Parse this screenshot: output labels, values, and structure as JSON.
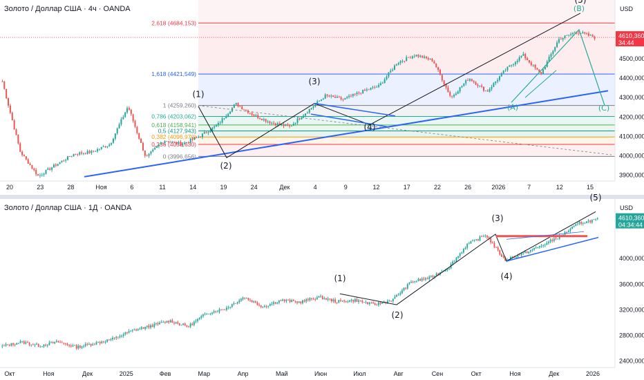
{
  "colors": {
    "up": "#26a69a",
    "down": "#ef5350",
    "trend": "#2962ff",
    "wave": "#131722",
    "cyan": "#22ab94",
    "price_bg": "#f23645"
  },
  "chart_data": [
    {
      "type": "candlestick",
      "title": "Золото / Доллар США · 4ч · OANDA",
      "currency": "USD",
      "ylim": [
        3870,
        4760
      ],
      "y_ticks": [
        "4500,000",
        "4400,000",
        "4300,000",
        "4200,000",
        "4100,000",
        "4000,000",
        "3900,000"
      ],
      "y_tick_values": [
        4500,
        4400,
        4300,
        4200,
        4100,
        4000,
        3900
      ],
      "x_ticks": [
        "20",
        "23",
        "28",
        "Ноя",
        "6",
        "11",
        "14",
        "19",
        "24",
        "Дек",
        "4",
        "9",
        "12",
        "17",
        "22",
        "26",
        "2026",
        "7",
        "12",
        "15"
      ],
      "last_price": "4610,360",
      "countdown": "34:44",
      "fib_levels": [
        {
          "label": "2,618 (4684,153)",
          "value": 4684.153,
          "color": "#f23645"
        },
        {
          "label": "1,618 (4421,549)",
          "value": 4421.549,
          "color": "#2962ff"
        },
        {
          "label": "1 (4259,260)",
          "value": 4259.26,
          "color": "#787b86"
        },
        {
          "label": "0,786 (4203,062)",
          "value": 4203.062,
          "color": "#22ab94"
        },
        {
          "label": "0,618 (4158,941)",
          "value": 4158.941,
          "color": "#4caf50"
        },
        {
          "label": "0,5 (4127,943)",
          "value": 4127.943,
          "color": "#089981"
        },
        {
          "label": "0,382 (4096,970)",
          "value": 4096.97,
          "color": "#ff9800"
        },
        {
          "label": "0,236 (4058,630)",
          "value": 4058.63,
          "color": "#f23645"
        },
        {
          "label": "0 (3996,656)",
          "value": 3996.656,
          "color": "#787b86"
        }
      ],
      "wave_labels": [
        "(1)",
        "(2)",
        "(3)",
        "(4)",
        "(5)"
      ],
      "correction_labels": [
        "(A)",
        "(B)",
        "(C)"
      ],
      "anchors": [
        4383,
        4020,
        3895,
        3955,
        4010,
        4020,
        4060,
        4255,
        3990,
        4080,
        4060,
        4100,
        4160,
        4268,
        4210,
        4170,
        4150,
        4230,
        4310,
        4290,
        4330,
        4360,
        4480,
        4520,
        4490,
        4300,
        4400,
        4330,
        4440,
        4520,
        4420,
        4600,
        4640,
        4610
      ]
    },
    {
      "type": "candlestick",
      "title": "Золото / Доллар США · 1Д · OANDA",
      "currency": "USD",
      "ylim": [
        2300,
        4800
      ],
      "y_ticks": [
        "4000,000",
        "3600,000",
        "3200,000",
        "2800,000",
        "2400,000"
      ],
      "y_tick_values": [
        4000,
        3600,
        3200,
        2800,
        2400
      ],
      "x_ticks": [
        "Окт",
        "Ноя",
        "Дек",
        "2025",
        "Фев",
        "Мар",
        "Апр",
        "Май",
        "Июн",
        "Июл",
        "Авг",
        "Сен",
        "Окт",
        "Ноя",
        "Дек",
        "2026"
      ],
      "last_price": "4610,360",
      "countdown": "04:34:44",
      "wave_labels": [
        "(1)",
        "(2)",
        "(3)",
        "(4)",
        "(5)"
      ],
      "anchors": [
        2630,
        2700,
        2640,
        2700,
        2620,
        2680,
        2750,
        2880,
        2950,
        3030,
        2940,
        3150,
        3220,
        3400,
        3250,
        3350,
        3320,
        3400,
        3330,
        3350,
        3280,
        3360,
        3640,
        3700,
        3860,
        4220,
        4370,
        3980,
        4080,
        4200,
        4350,
        4550,
        4610
      ]
    }
  ]
}
